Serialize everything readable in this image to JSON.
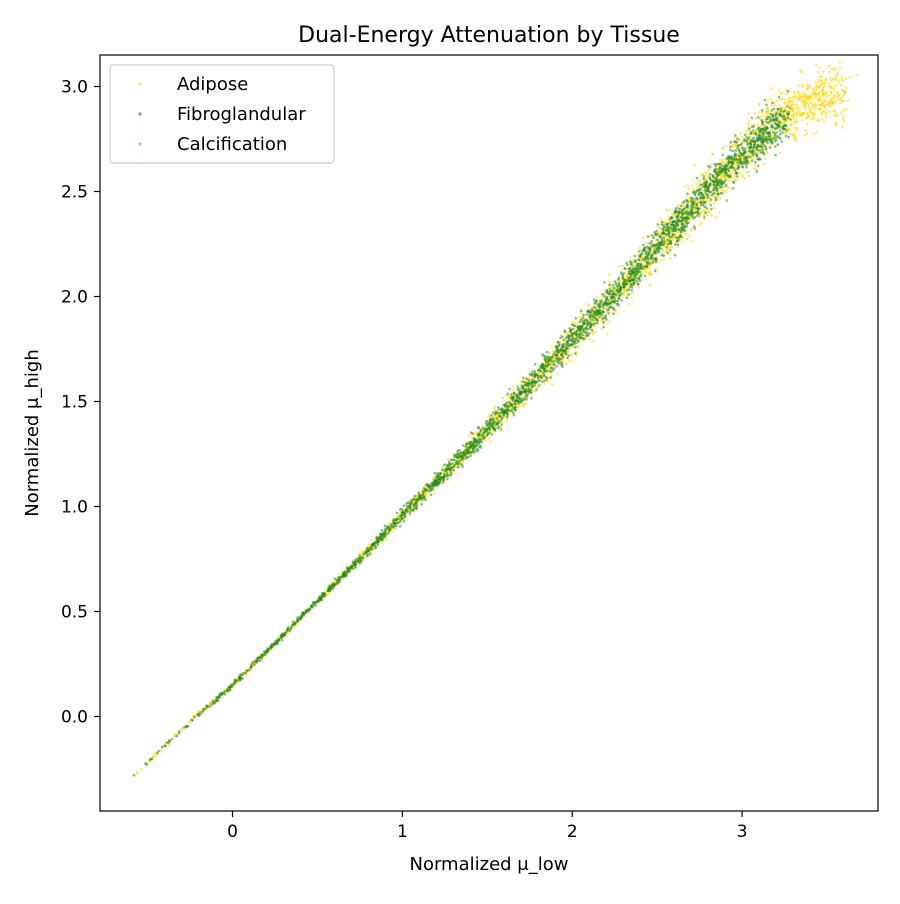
{
  "chart_data": {
    "type": "scatter",
    "title": "Dual-Energy Attenuation by Tissue",
    "xlabel": "Normalized μ_low",
    "ylabel": "Normalized μ_high",
    "xlim": [
      -0.78,
      3.8
    ],
    "ylim": [
      -0.45,
      3.15
    ],
    "xticks": [
      0,
      1,
      2,
      3
    ],
    "xtick_labels": [
      "0",
      "1",
      "2",
      "3"
    ],
    "yticks": [
      0.0,
      0.5,
      1.0,
      1.5,
      2.0,
      2.5,
      3.0
    ],
    "ytick_labels": [
      "0.0",
      "0.5",
      "1.0",
      "1.5",
      "2.0",
      "2.5",
      "3.0"
    ],
    "grid": false,
    "legend_position": "upper-left",
    "series": [
      {
        "name": "Adipose",
        "color": "#FFD700",
        "x_range": [
          -0.58,
          3.6
        ],
        "description_of_points": "dense band along line",
        "points": [
          [
            -0.58,
            -0.28
          ],
          [
            -0.5,
            -0.22
          ],
          [
            -0.4,
            -0.14
          ],
          [
            -0.3,
            -0.06
          ],
          [
            -0.2,
            0.02
          ],
          [
            -0.1,
            0.08
          ],
          [
            0.0,
            0.15
          ],
          [
            0.1,
            0.23
          ],
          [
            0.2,
            0.31
          ],
          [
            0.3,
            0.39
          ],
          [
            0.4,
            0.47
          ],
          [
            0.5,
            0.55
          ],
          [
            0.6,
            0.63
          ],
          [
            0.7,
            0.71
          ],
          [
            0.8,
            0.79
          ],
          [
            0.9,
            0.87
          ],
          [
            1.0,
            0.96
          ],
          [
            1.2,
            1.12
          ],
          [
            1.4,
            1.28
          ],
          [
            1.6,
            1.45
          ],
          [
            1.8,
            1.62
          ],
          [
            2.0,
            1.79
          ],
          [
            2.2,
            1.96
          ],
          [
            2.4,
            2.14
          ],
          [
            2.6,
            2.32
          ],
          [
            2.8,
            2.5
          ],
          [
            3.0,
            2.67
          ],
          [
            3.1,
            2.76
          ],
          [
            3.2,
            2.84
          ],
          [
            3.3,
            2.89
          ],
          [
            3.4,
            2.93
          ],
          [
            3.5,
            2.95
          ],
          [
            3.6,
            2.96
          ]
        ]
      },
      {
        "name": "Fibroglandular",
        "color": "#228B22",
        "x_range": [
          -0.58,
          3.25
        ],
        "points": [
          [
            -0.58,
            -0.28
          ],
          [
            -0.4,
            -0.14
          ],
          [
            -0.2,
            0.01
          ],
          [
            0.0,
            0.15
          ],
          [
            0.2,
            0.31
          ],
          [
            0.4,
            0.47
          ],
          [
            0.6,
            0.63
          ],
          [
            0.8,
            0.79
          ],
          [
            1.0,
            0.96
          ],
          [
            1.2,
            1.12
          ],
          [
            1.4,
            1.28
          ],
          [
            1.6,
            1.45
          ],
          [
            1.8,
            1.62
          ],
          [
            2.0,
            1.8
          ],
          [
            2.2,
            1.97
          ],
          [
            2.4,
            2.15
          ],
          [
            2.6,
            2.33
          ],
          [
            2.8,
            2.51
          ],
          [
            3.0,
            2.68
          ],
          [
            3.1,
            2.75
          ],
          [
            3.2,
            2.82
          ],
          [
            3.25,
            2.85
          ]
        ]
      },
      {
        "name": "Calcification",
        "color": "#F08080",
        "points": []
      }
    ]
  }
}
